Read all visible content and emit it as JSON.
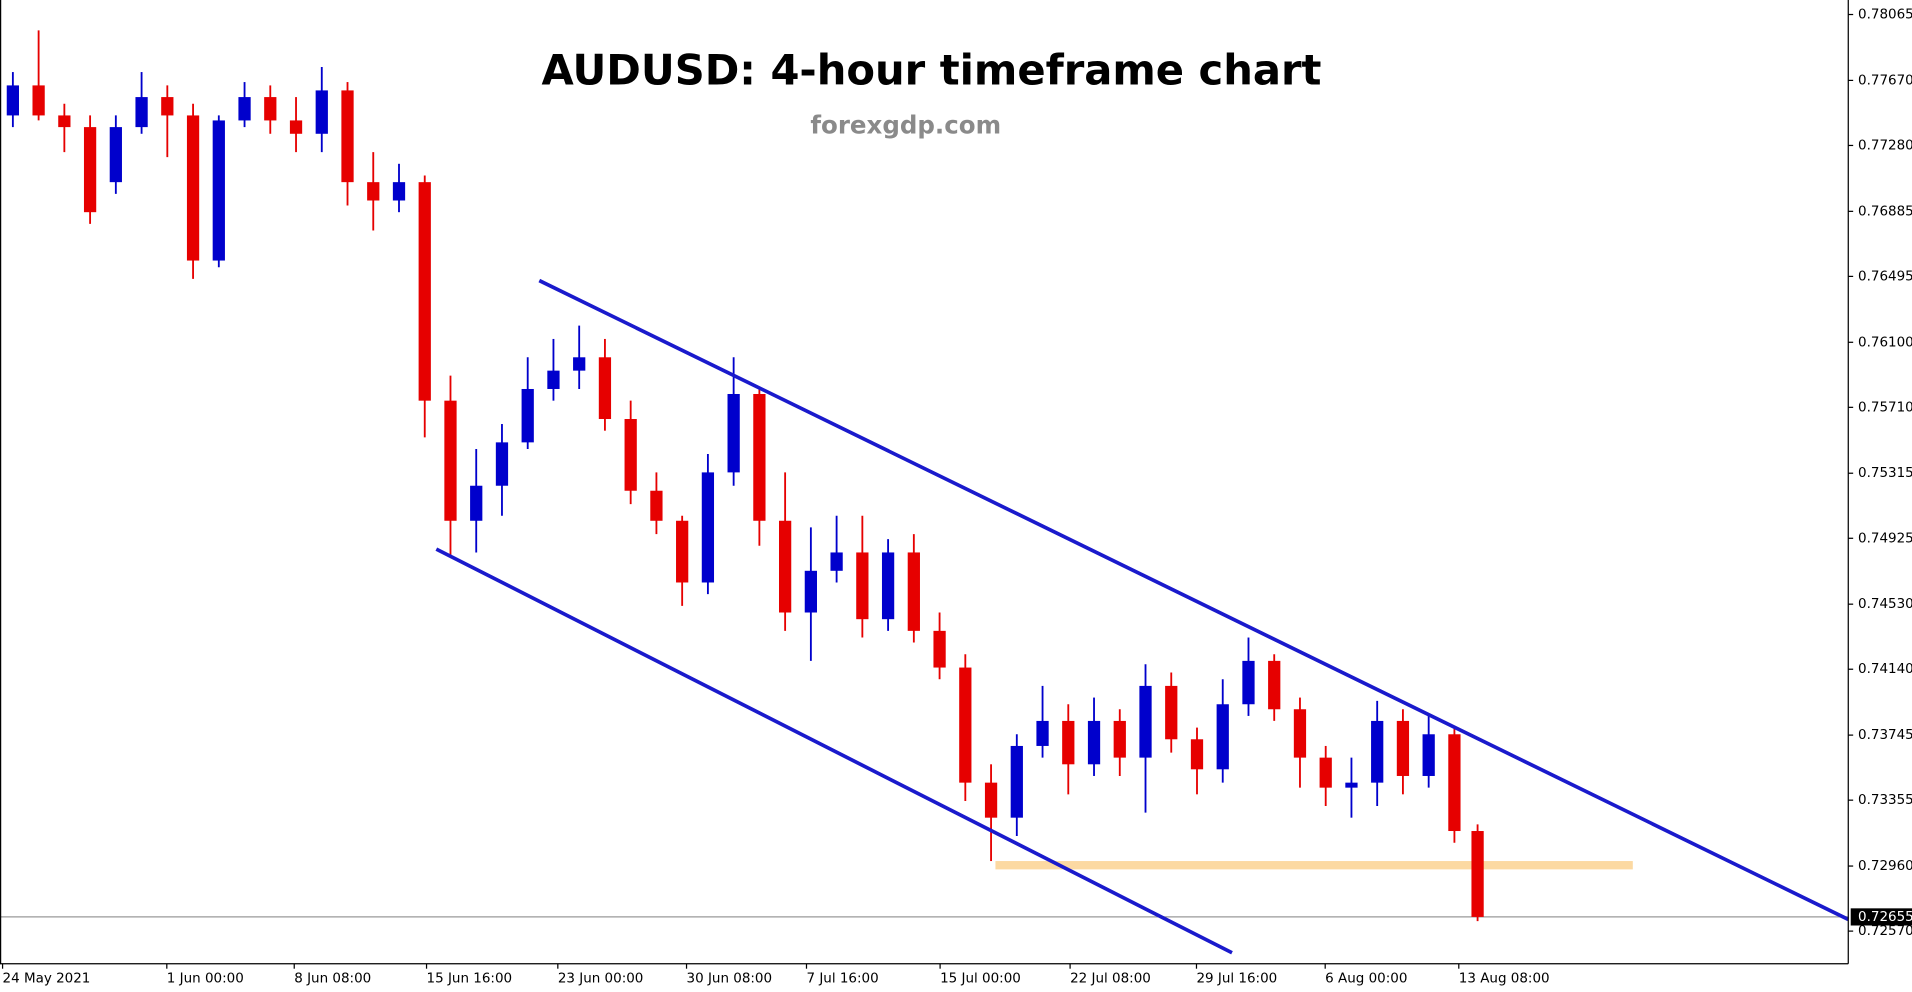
{
  "chart_data": {
    "type": "candlestick",
    "title": "AUDUSD: 4-hour timeframe chart",
    "subtitle": "forexgdp.com",
    "up_color": "#0000cc",
    "down_color": "#e60000",
    "x": [
      0.5,
      1.5,
      2.5,
      3.5,
      4.5,
      5.5,
      6.5,
      7.5,
      8.5,
      9.5,
      10.5,
      11.5,
      12.5,
      13.5,
      14.5,
      15.5,
      16.5,
      17.5,
      18.5,
      19.5,
      20.5,
      21.5,
      22.5,
      23.5,
      24.5,
      25.5,
      26.5,
      27.5,
      28.5,
      29.5,
      30.5,
      31.5,
      32.5,
      33.5,
      34.5,
      35.5,
      36.5,
      37.5,
      38.5,
      39.5,
      40.5,
      41.5,
      42.5,
      43.5,
      44.5,
      45.5,
      46.5,
      47.5,
      48.5,
      49.5,
      50.5,
      51.5,
      52.5,
      53.5,
      54.5,
      55.5,
      56.5,
      57.4
    ],
    "open": [
      0.7746,
      0.7764,
      0.7746,
      0.7739,
      0.7706,
      0.7739,
      0.7757,
      0.7746,
      0.7659,
      0.7743,
      0.7757,
      0.7743,
      0.7735,
      0.7761,
      0.7706,
      0.7695,
      0.7706,
      0.7575,
      0.7503,
      0.7524,
      0.755,
      0.7582,
      0.7593,
      0.7601,
      0.7564,
      0.7521,
      0.7503,
      0.7466,
      0.7532,
      0.7579,
      0.7503,
      0.7448,
      0.7473,
      0.7484,
      0.7444,
      0.7484,
      0.7437,
      0.7415,
      0.7346,
      0.7325,
      0.7368,
      0.7383,
      0.7357,
      0.7383,
      0.7361,
      0.7404,
      0.7372,
      0.7354,
      0.7393,
      0.7419,
      0.739,
      0.7361,
      0.7343,
      0.7346,
      0.7383,
      0.735,
      0.7375,
      0.7317
    ],
    "high": [
      0.7772,
      0.7797,
      0.7753,
      0.7746,
      0.7746,
      0.7772,
      0.7764,
      0.7753,
      0.7746,
      0.7766,
      0.7764,
      0.7757,
      0.7775,
      0.7766,
      0.7724,
      0.7717,
      0.771,
      0.759,
      0.7546,
      0.7561,
      0.7601,
      0.7612,
      0.762,
      0.7612,
      0.7575,
      0.7532,
      0.7506,
      0.7543,
      0.7601,
      0.7582,
      0.7532,
      0.7499,
      0.7506,
      0.7506,
      0.7492,
      0.7495,
      0.7448,
      0.7423,
      0.7357,
      0.7375,
      0.7404,
      0.7393,
      0.7397,
      0.739,
      0.7417,
      0.7412,
      0.7379,
      0.7408,
      0.7433,
      0.7423,
      0.7397,
      0.7368,
      0.7361,
      0.7395,
      0.739,
      0.7386,
      0.7379,
      0.7321
    ],
    "low": [
      0.7739,
      0.7743,
      0.7724,
      0.7681,
      0.7699,
      0.7735,
      0.7721,
      0.7648,
      0.7655,
      0.7739,
      0.7735,
      0.7724,
      0.7724,
      0.7692,
      0.7677,
      0.7688,
      0.7553,
      0.7481,
      0.7484,
      0.7506,
      0.7546,
      0.7575,
      0.7582,
      0.7557,
      0.7513,
      0.7495,
      0.7452,
      0.7459,
      0.7524,
      0.7488,
      0.7437,
      0.7419,
      0.7466,
      0.7433,
      0.7437,
      0.743,
      0.7408,
      0.7335,
      0.7299,
      0.7314,
      0.7361,
      0.7339,
      0.735,
      0.735,
      0.7328,
      0.7364,
      0.7339,
      0.7346,
      0.7386,
      0.7383,
      0.7343,
      0.7332,
      0.7325,
      0.7332,
      0.7339,
      0.7343,
      0.731,
      0.7263
    ],
    "close": [
      0.7764,
      0.7746,
      0.7739,
      0.7688,
      0.7739,
      0.7757,
      0.7746,
      0.7659,
      0.7743,
      0.7757,
      0.7743,
      0.7735,
      0.7761,
      0.7706,
      0.7695,
      0.7706,
      0.7575,
      0.7503,
      0.7524,
      0.755,
      0.7582,
      0.7593,
      0.7601,
      0.7564,
      0.7521,
      0.7503,
      0.7466,
      0.7532,
      0.7579,
      0.7503,
      0.7448,
      0.7473,
      0.7484,
      0.7444,
      0.7484,
      0.7437,
      0.7415,
      0.7346,
      0.7325,
      0.7368,
      0.7383,
      0.7357,
      0.7383,
      0.7361,
      0.7404,
      0.7372,
      0.7354,
      0.7393,
      0.7419,
      0.739,
      0.7361,
      0.7343,
      0.7346,
      0.7383,
      0.735,
      0.7375,
      0.7317,
      0.72655
    ],
    "xlim": [
      0,
      71.8
    ],
    "ylim": [
      0.72374,
      0.78152
    ],
    "xticks": [
      {
        "value": 0.1,
        "label": "24 May 2021"
      },
      {
        "value": 6.48,
        "label": "1 Jun 00:00"
      },
      {
        "value": 11.43,
        "label": "8 Jun 08:00"
      },
      {
        "value": 16.57,
        "label": "15 Jun 16:00"
      },
      {
        "value": 21.67,
        "label": "23 Jun 00:00"
      },
      {
        "value": 26.67,
        "label": "30 Jun 08:00"
      },
      {
        "value": 31.33,
        "label": "7 Jul 16:00"
      },
      {
        "value": 36.52,
        "label": "15 Jul 00:00"
      },
      {
        "value": 41.57,
        "label": "22 Jul 08:00"
      },
      {
        "value": 46.48,
        "label": "29 Jul 16:00"
      },
      {
        "value": 51.48,
        "label": "6 Aug 00:00"
      },
      {
        "value": 56.67,
        "label": "13 Aug 08:00"
      }
    ],
    "yticks": [
      0.78065,
      {
        "value": 0.7767,
        "label": "0.77670"
      },
      {
        "value": 0.7728,
        "label": "0.77280"
      },
      0.76885,
      0.76495,
      {
        "value": 0.761,
        "label": "0.76100"
      },
      {
        "value": 0.7571,
        "label": "0.75710"
      },
      0.75315,
      0.74925,
      {
        "value": 0.7453,
        "label": "0.74530"
      },
      {
        "value": 0.7414,
        "label": "0.74140"
      },
      0.73745,
      0.73355,
      {
        "value": 0.7296,
        "label": "0.72960"
      },
      {
        "value": 0.7257,
        "label": "0.72570"
      }
    ],
    "last_price": 0.72655,
    "trendlines": [
      {
        "color": "#1a1acc",
        "x": [
          20.95,
          71.8
        ],
        "y": [
          0.7647,
          0.7264
        ]
      },
      {
        "color": "#1a1acc",
        "x": [
          16.95,
          47.86
        ],
        "y": [
          0.7486,
          0.7244
        ]
      }
    ],
    "zone": {
      "color": "#fcd9a2",
      "x": [
        38.67,
        63.43
      ],
      "y": [
        0.7294,
        0.7299
      ]
    }
  }
}
